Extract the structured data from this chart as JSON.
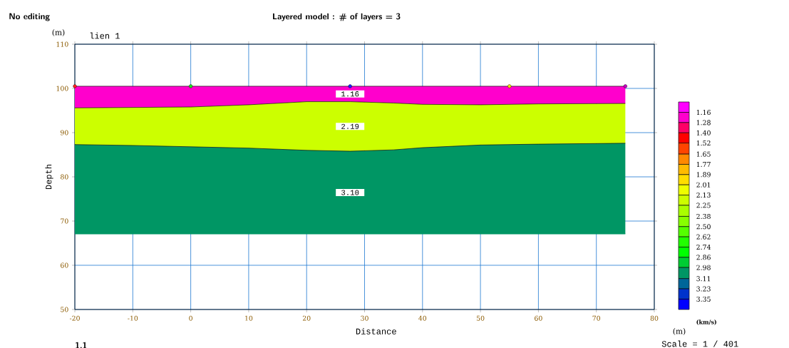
{
  "chart_data": {
    "type": "area",
    "title": "Layered model : # of layers = 3",
    "xlabel": "Distance",
    "ylabel": "Depth",
    "clabel": "(km/s)",
    "annotations": [
      "No editing",
      "lien 1",
      "(m)",
      "(m)",
      "Scale = 1 / 401",
      "1.1"
    ],
    "series": [
      {
        "name": "1.16",
        "color": "#ff00cc",
        "x": [
          -20,
          -10,
          0,
          10,
          20,
          27.5,
          35,
          40,
          50,
          60,
          75
        ],
        "values": [
          100.5,
          100.5,
          100.5,
          100.5,
          100.5,
          100.5,
          100.5,
          100.5,
          100.5,
          100.5,
          100.5
        ]
      },
      {
        "name": "2.19",
        "color": "#ccff00",
        "x": [
          -20,
          -10,
          0,
          10,
          20,
          27.5,
          35,
          40,
          50,
          60,
          75
        ],
        "values": [
          95.6,
          95.7,
          95.8,
          96.3,
          97.0,
          97.0,
          96.7,
          96.4,
          96.3,
          96.5,
          96.6
        ]
      },
      {
        "name": "3.10",
        "color": "#009664",
        "x": [
          -20,
          -10,
          0,
          10,
          20,
          27.5,
          35,
          40,
          50,
          60,
          75
        ],
        "values": [
          87.3,
          87.1,
          86.8,
          86.5,
          86.0,
          85.8,
          86.1,
          86.6,
          87.2,
          87.4,
          87.6
        ]
      },
      {
        "type": "line",
        "color": "#009664",
        "x": [
          -20,
          -10,
          0,
          10,
          20,
          27.5,
          35,
          40,
          50,
          60,
          75
        ],
        "values": [
          67.1,
          67.1,
          67.1,
          67.1,
          67.1,
          67.1,
          67.1,
          67.1,
          67.1,
          67.1,
          67.1
        ]
      },
      {
        "type": "scatter",
        "marker": "circle",
        "x": [
          -20,
          0,
          27.5,
          55,
          75
        ],
        "values": [
          100.5,
          100.5,
          100.5,
          100.5,
          100.5
        ],
        "colors": [
          "#ff2020",
          "#20e020",
          "#2020ff",
          "#f0e000",
          "#c000c0"
        ]
      }
    ],
    "xlim": [
      -20,
      80
    ],
    "ylim": [
      50,
      110
    ],
    "xticks": [
      -20,
      -10,
      0,
      10,
      20,
      30,
      40,
      50,
      60,
      70,
      80
    ],
    "yticks": [
      50,
      60,
      70,
      80,
      90,
      100,
      110
    ],
    "clim": [
      1.16,
      3.35
    ],
    "cticks": [
      {
        "value": 1.16,
        "label": "1.16"
      },
      {
        "value": 1.28,
        "label": "1.28"
      },
      {
        "value": 1.4,
        "label": "1.40"
      },
      {
        "value": 1.52,
        "label": "1.52"
      },
      {
        "value": 1.65,
        "label": "1.65"
      },
      {
        "value": 1.77,
        "label": "1.77"
      },
      {
        "value": 1.89,
        "label": "1.89"
      },
      {
        "value": 2.01,
        "label": "2.01"
      },
      {
        "value": 2.13,
        "label": "2.13"
      },
      {
        "value": 2.25,
        "label": "2.25"
      },
      {
        "value": 2.38,
        "label": "2.38"
      },
      {
        "value": 2.5,
        "label": "2.50"
      },
      {
        "value": 2.62,
        "label": "2.62"
      },
      {
        "value": 2.74,
        "label": "2.74"
      },
      {
        "value": 2.86,
        "label": "2.86"
      },
      {
        "value": 2.98,
        "label": "2.98"
      },
      {
        "value": 3.11,
        "label": "3.11"
      },
      {
        "value": 3.23,
        "label": "3.23"
      },
      {
        "value": 3.35,
        "label": "3.35"
      }
    ],
    "grid": true
  }
}
